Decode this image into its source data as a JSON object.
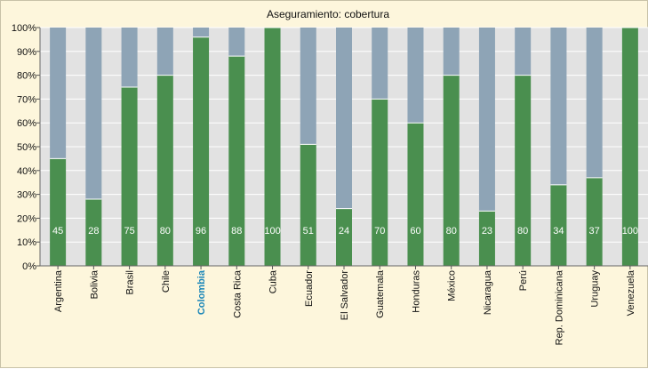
{
  "chart_data": {
    "type": "bar",
    "stacked": true,
    "title": "Aseguramiento: cobertura",
    "categories": [
      "Argentina",
      "Bolivia",
      "Brasil",
      "Chile",
      "Colombia",
      "Costa Rica",
      "Cuba",
      "Ecuador",
      "El Salvador",
      "Guatemala",
      "Honduras",
      "México",
      "Nicaragua",
      "Perú",
      "Rep. Dominicana",
      "Uruguay",
      "Venezuela"
    ],
    "highlighted_category": "Colombia",
    "values": [
      45,
      28,
      75,
      80,
      96,
      88,
      100,
      51,
      24,
      70,
      60,
      80,
      23,
      80,
      34,
      37,
      100
    ],
    "value_labels": [
      "45",
      "28",
      "75",
      "80",
      "96",
      "88",
      "100",
      "51",
      "24",
      "70",
      "60",
      "80",
      "23",
      "80",
      "34",
      "37",
      "100"
    ],
    "ylim": [
      0,
      100
    ],
    "yticks": [
      0,
      10,
      20,
      30,
      40,
      50,
      60,
      70,
      80,
      90,
      100
    ],
    "ytick_labels": [
      "0%",
      "10%",
      "20%",
      "30%",
      "40%",
      "50%",
      "60%",
      "70%",
      "80%",
      "90%",
      "100%"
    ],
    "grid": true,
    "colors": {
      "covered": "#4a8f4f",
      "remainder": "#8ea4b6",
      "plot_background": "#e2e2e2",
      "frame_background": "#fdf6dc",
      "gridline": "#ffffff",
      "highlight_label": "#1a86b8",
      "value_label": "#ffffff"
    }
  }
}
